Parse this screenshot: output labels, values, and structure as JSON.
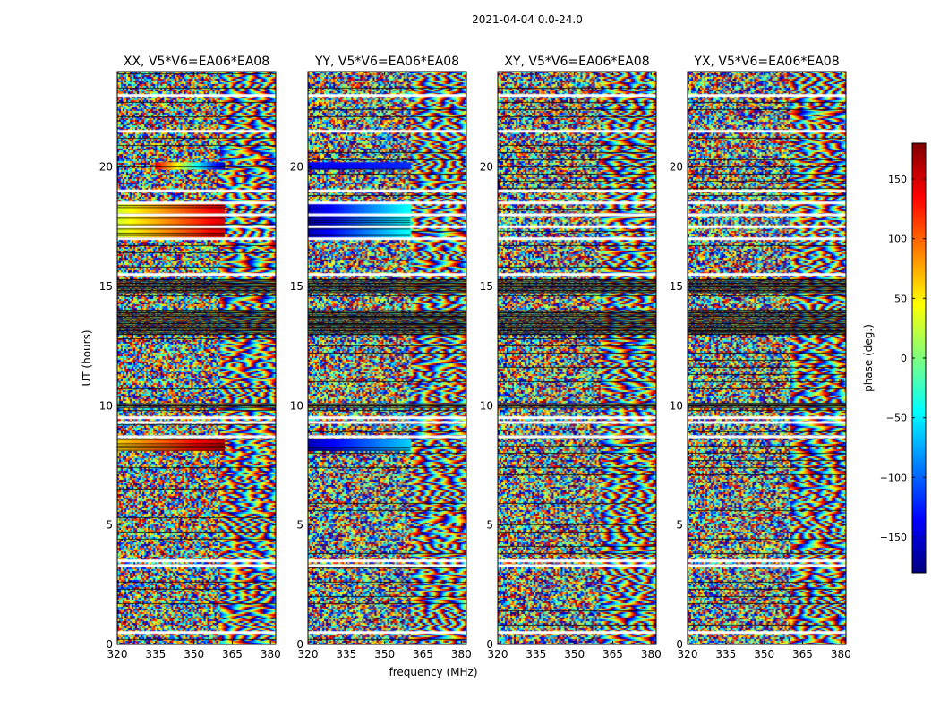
{
  "chart_data": {
    "type": "heatmap",
    "suptitle": "2021-04-04 0.0-24.0",
    "panels": [
      {
        "title": "XX, V5*V6=EA06*EA08",
        "pol": "XX"
      },
      {
        "title": "YY, V5*V6=EA06*EA08",
        "pol": "YY"
      },
      {
        "title": "XY, V5*V6=EA06*EA08",
        "pol": "XY"
      },
      {
        "title": "YX, V5*V6=EA06*EA08",
        "pol": "YX"
      }
    ],
    "xlabel": "frequency (MHz)",
    "ylabel": "UT (hours)",
    "xlim": [
      320,
      382
    ],
    "ylim": [
      0,
      24
    ],
    "xticks": [
      320,
      335,
      350,
      365,
      380
    ],
    "yticks": [
      0,
      5,
      10,
      15,
      20
    ],
    "colorbar": {
      "label": "phase (deg.)",
      "range": [
        -180,
        180
      ],
      "ticks": [
        -150,
        -100,
        -50,
        0,
        50,
        100,
        150
      ],
      "colormap": "jet"
    },
    "colorbar_ticks": [
      "−150",
      "−100",
      "−50",
      "0",
      "50",
      "100",
      "150"
    ],
    "flagged_rows_hours": [
      0.5,
      3.3,
      3.5,
      8.7,
      9.3,
      9.5,
      15.5,
      17.0,
      17.5,
      18.0,
      18.5,
      19.0,
      21.5,
      23.0
    ],
    "black_band_hours": [
      [
        9.9,
        10.1
      ],
      [
        13.0,
        14.0
      ],
      [
        14.7,
        15.3
      ]
    ],
    "strong_phase_bands": [
      {
        "pol": "XX",
        "ut": [
          17.0,
          18.5
        ],
        "freq": [
          320,
          362
        ],
        "phase_start": 30,
        "phase_end": 150
      },
      {
        "pol": "XX",
        "ut": [
          8.1,
          8.6
        ],
        "freq": [
          320,
          362
        ],
        "phase_start": 60,
        "phase_end": 160
      },
      {
        "pol": "XX",
        "ut": [
          19.9,
          20.2
        ],
        "freq": [
          335,
          362
        ],
        "phase_start": 140,
        "phase_end": -170
      },
      {
        "pol": "YY",
        "ut": [
          17.0,
          18.5
        ],
        "freq": [
          320,
          360
        ],
        "phase_start": -160,
        "phase_end": -40
      },
      {
        "pol": "YY",
        "ut": [
          8.1,
          8.6
        ],
        "freq": [
          320,
          360
        ],
        "phase_start": -160,
        "phase_end": -60
      },
      {
        "pol": "YY",
        "ut": [
          19.9,
          20.2
        ],
        "freq": [
          320,
          360
        ],
        "phase_start": -140,
        "phase_end": -120
      }
    ],
    "colors": {
      "nan": "#ffffff",
      "flag": "#000000",
      "frame": "#000000"
    }
  }
}
